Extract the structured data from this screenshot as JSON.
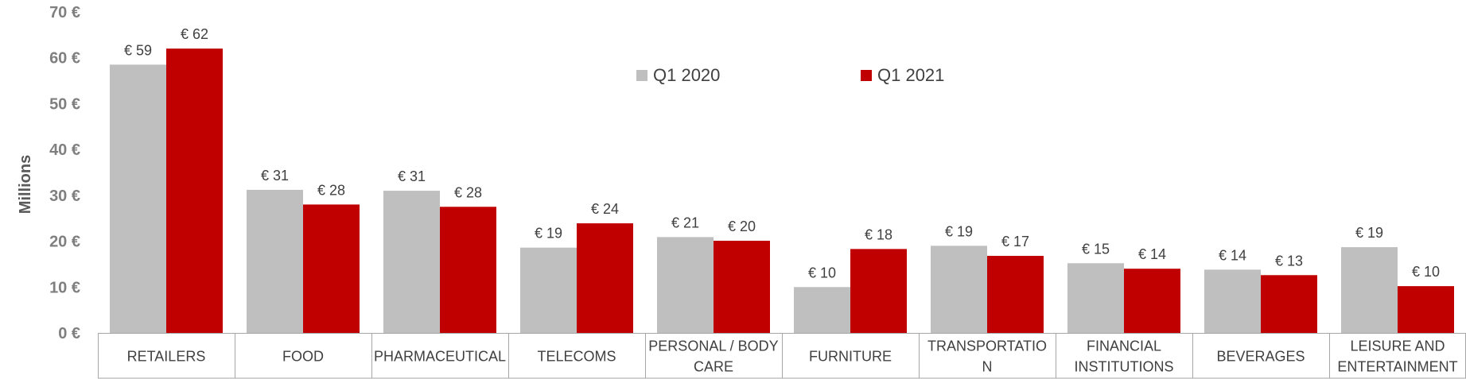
{
  "chart_data": {
    "type": "bar",
    "title": "",
    "xlabel": "",
    "ylabel": "Millions",
    "ylim": [
      0,
      70
    ],
    "yticks": [
      0,
      10,
      20,
      30,
      40,
      50,
      60,
      70
    ],
    "ytick_labels": [
      "0 €",
      "10 €",
      "20 €",
      "30 €",
      "40 €",
      "50 €",
      "60 €",
      "70 €"
    ],
    "categories": [
      [
        "RETAILERS"
      ],
      [
        "FOOD"
      ],
      [
        "PHARMACEUTICAL"
      ],
      [
        "TELECOMS"
      ],
      [
        "PERSONAL / BODY",
        "CARE"
      ],
      [
        "FURNITURE"
      ],
      [
        "TRANSPORTATIO",
        "N"
      ],
      [
        "FINANCIAL",
        "INSTITUTIONS"
      ],
      [
        "BEVERAGES"
      ],
      [
        "LEISURE AND",
        "ENTERTAINMENT"
      ]
    ],
    "series": [
      {
        "name": "Q1 2020",
        "color": "#bfbfbf",
        "values": [
          58.5,
          31.2,
          31.0,
          18.6,
          20.9,
          10.0,
          19.0,
          15.2,
          13.8,
          18.7
        ],
        "labels": [
          "€ 59",
          "€ 31",
          "€ 31",
          "€ 19",
          "€ 21",
          "€ 10",
          "€ 19",
          "€ 15",
          "€ 14",
          "€ 19"
        ]
      },
      {
        "name": "Q1 2021",
        "color": "#c00000",
        "values": [
          62.0,
          28.0,
          27.5,
          23.9,
          20.1,
          18.3,
          16.8,
          14.0,
          12.6,
          10.2
        ],
        "labels": [
          "€ 62",
          "€ 28",
          "€ 28",
          "€ 24",
          "€ 20",
          "€ 18",
          "€ 17",
          "€ 14",
          "€ 13",
          "€ 10"
        ]
      }
    ],
    "legend_position": "top-center",
    "grid": false,
    "category_axis_table": true
  }
}
